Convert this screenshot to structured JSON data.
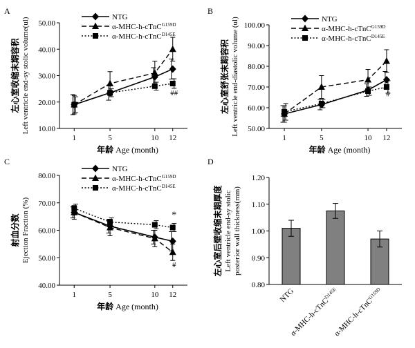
{
  "chart_data": [
    {
      "panel": "A",
      "type": "line",
      "ylabel_cn": "左心室收缩末期容积",
      "ylabel": "Left ventricle end-sy stolic volume(ul)",
      "xlabel_cn": "年龄",
      "xlabel": "Age (month)",
      "x": [
        1,
        5,
        10,
        12
      ],
      "xticks": [
        "1",
        "5",
        "10",
        "12"
      ],
      "ylim": [
        10,
        50
      ],
      "yticks": [
        "10.00",
        "20.00",
        "30.00",
        "40.00",
        "50.00"
      ],
      "legend": [
        {
          "base": "NTG",
          "sup": ""
        },
        {
          "base": "α-MHC-h-cTnC",
          "sup": "G159D"
        },
        {
          "base": "α-MHC-h-cTnC",
          "sup": "D145E"
        }
      ],
      "series": [
        {
          "name": "NTG",
          "values": [
            19,
            23.5,
            29.5,
            32.5
          ],
          "err": [
            3.8,
            2.8,
            3.5,
            3.8
          ]
        },
        {
          "name": "α-MHC-h-cTnC G159D",
          "values": [
            19,
            27,
            31,
            40
          ],
          "err": [
            3.5,
            4.5,
            4.5,
            4.5
          ]
        },
        {
          "name": "α-MHC-h-cTnC D145E",
          "values": [
            19,
            23.5,
            26,
            27
          ],
          "err": [
            3,
            1.5,
            1.5,
            1.8
          ]
        }
      ],
      "annotations": [
        {
          "text": "##",
          "x": 12,
          "y": 22.5
        }
      ]
    },
    {
      "panel": "B",
      "type": "line",
      "ylabel_cn": "左心室舒张末期容积",
      "ylabel": "Left ventricle end-diastolic volume (ul)",
      "xlabel_cn": "年龄",
      "xlabel": "Age (month)",
      "x": [
        1,
        5,
        10,
        12
      ],
      "xticks": [
        "1",
        "5",
        "10",
        "12"
      ],
      "ylim": [
        50,
        100
      ],
      "yticks": [
        "50.00",
        "60.00",
        "70.00",
        "80.00",
        "90.00",
        "100.00"
      ],
      "legend": [
        {
          "base": "NTG",
          "sup": ""
        },
        {
          "base": "α-MHC-h-cTnC",
          "sup": "G159D"
        },
        {
          "base": "α-MHC-h-cTnC",
          "sup": "D145E"
        }
      ],
      "series": [
        {
          "name": "NTG",
          "values": [
            57,
            61.5,
            68.5,
            73.5
          ],
          "err": [
            4,
            2.5,
            3,
            4
          ]
        },
        {
          "name": "α-MHC-h-cTnC G159D",
          "values": [
            57,
            70,
            73.5,
            82.5
          ],
          "err": [
            4,
            5.5,
            5,
            5.5
          ]
        },
        {
          "name": "α-MHC-h-cTnC D145E",
          "values": [
            58,
            62,
            68,
            70
          ],
          "err": [
            4,
            2,
            2,
            3
          ]
        }
      ],
      "annotations": [
        {
          "text": "#",
          "x": 12,
          "y": 65.5
        }
      ]
    },
    {
      "panel": "C",
      "type": "line",
      "ylabel_cn": "射血分数",
      "ylabel": "Ejection Fraction (%)",
      "xlabel_cn": "年龄",
      "xlabel": "Age (month)",
      "x": [
        1,
        5,
        10,
        12
      ],
      "xticks": [
        "1",
        "5",
        "10",
        "12"
      ],
      "ylim": [
        40,
        80
      ],
      "yticks": [
        "40.00",
        "50.00",
        "60.00",
        "70.00",
        "80.00"
      ],
      "legend": [
        {
          "base": "NTG",
          "sup": ""
        },
        {
          "base": "α-MHC-h-cTnC",
          "sup": "G159D"
        },
        {
          "base": "α-MHC-h-cTnC",
          "sup": "D145E"
        }
      ],
      "series": [
        {
          "name": "NTG",
          "values": [
            66.5,
            61.5,
            57.5,
            56
          ],
          "err": [
            2,
            2.5,
            2.5,
            3.5
          ]
        },
        {
          "name": "α-MHC-h-cTnC G159D",
          "values": [
            66.5,
            61,
            57,
            52
          ],
          "err": [
            2.5,
            3,
            3,
            3
          ]
        },
        {
          "name": "α-MHC-h-cTnC D145E",
          "values": [
            68,
            63,
            62,
            61
          ],
          "err": [
            1.5,
            1.5,
            1.5,
            1.5
          ]
        }
      ],
      "annotations": [
        {
          "text": "*",
          "x": 12,
          "y": 64.5
        },
        {
          "text": "#",
          "x": 12,
          "y": 46.5
        }
      ]
    },
    {
      "panel": "D",
      "type": "bar",
      "ylabel_cn": "左心室后壁收缩末期厚度",
      "ylabel": "Left ventricle end-sy stolic posterior wall thickness(mm)",
      "categories": [
        {
          "base": "NTG",
          "sup": ""
        },
        {
          "base": "α-MHC-h-cTnC",
          "sup": "D145E"
        },
        {
          "base": "α-MHC-h-cTnC",
          "sup": "G159D"
        }
      ],
      "values": [
        1.01,
        1.075,
        0.97
      ],
      "err": [
        0.03,
        0.028,
        0.03
      ],
      "ylim": [
        0.8,
        1.2
      ],
      "yticks": [
        "0.80",
        "0.90",
        "1.00",
        "1.10",
        "1.20"
      ],
      "bar_color": "#808080"
    }
  ]
}
